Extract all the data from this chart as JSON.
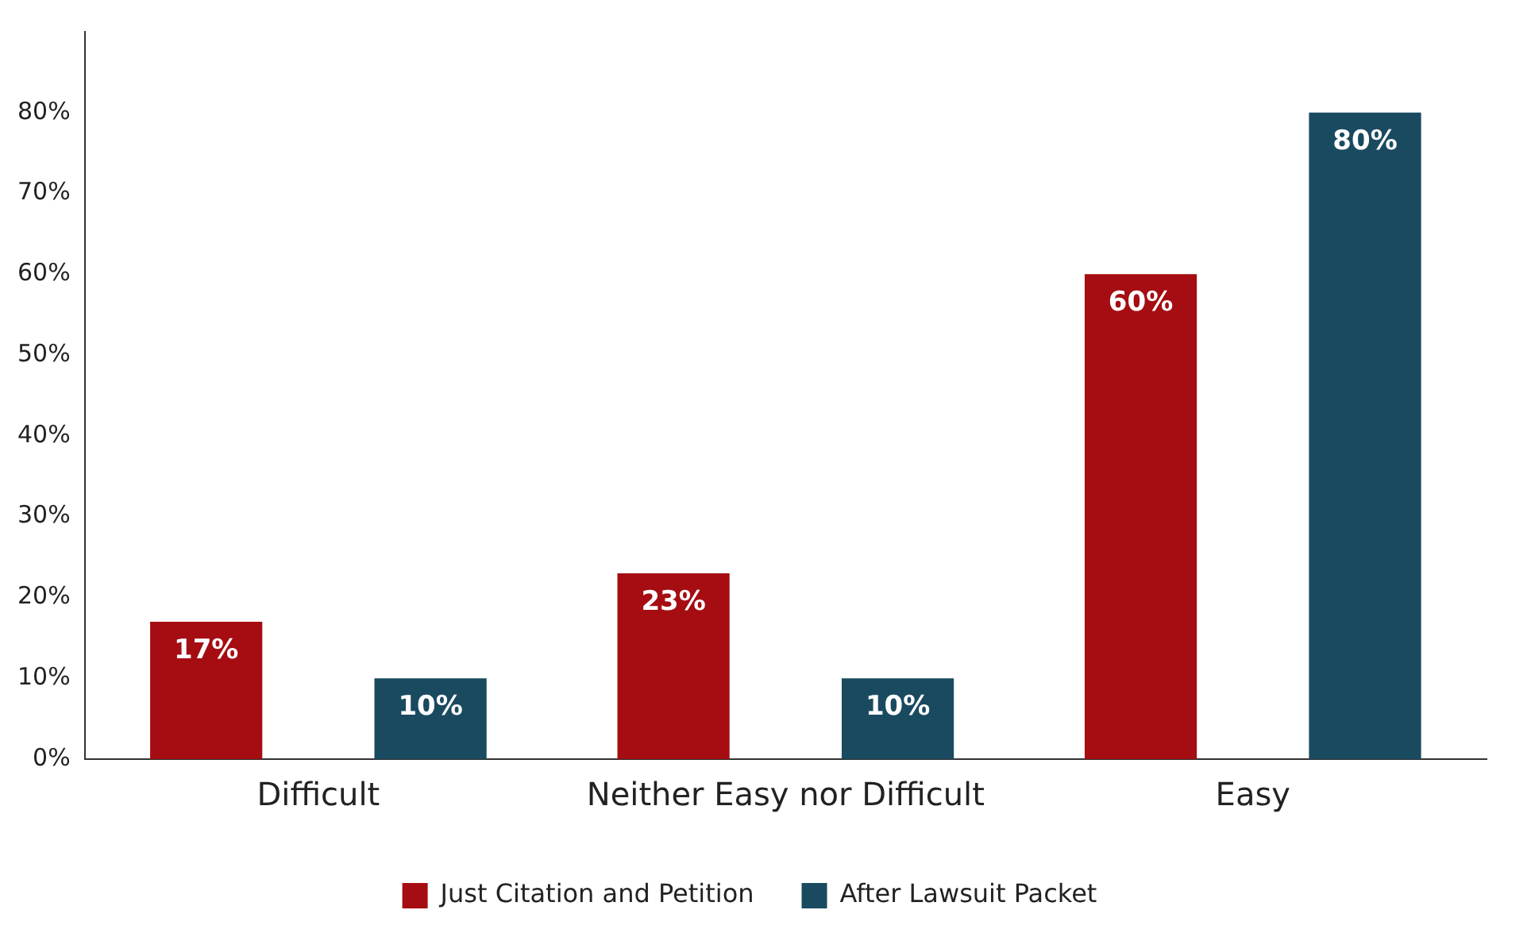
{
  "chart_data": {
    "type": "bar",
    "categories": [
      "Difficult",
      "Neither Easy nor Difficult",
      "Easy"
    ],
    "series": [
      {
        "name": "Just Citation and Petition",
        "color": "#a50d12",
        "values": [
          17,
          23,
          60
        ],
        "value_labels": [
          "17%",
          "23%",
          "60%"
        ]
      },
      {
        "name": "After Lawsuit Packet",
        "color": "#1a4a60",
        "values": [
          10,
          10,
          80
        ],
        "value_labels": [
          "10%",
          "10%",
          "80%"
        ]
      }
    ],
    "ylim": [
      0,
      90
    ],
    "yticks": [
      {
        "value": 0,
        "label": "0%"
      },
      {
        "value": 10,
        "label": "10%"
      },
      {
        "value": 20,
        "label": "20%"
      },
      {
        "value": 30,
        "label": "30%"
      },
      {
        "value": 40,
        "label": "40%"
      },
      {
        "value": 50,
        "label": "50%"
      },
      {
        "value": 60,
        "label": "60%"
      },
      {
        "value": 70,
        "label": "70%"
      },
      {
        "value": 80,
        "label": "80%"
      }
    ],
    "grid": false,
    "legend": "bottom"
  }
}
